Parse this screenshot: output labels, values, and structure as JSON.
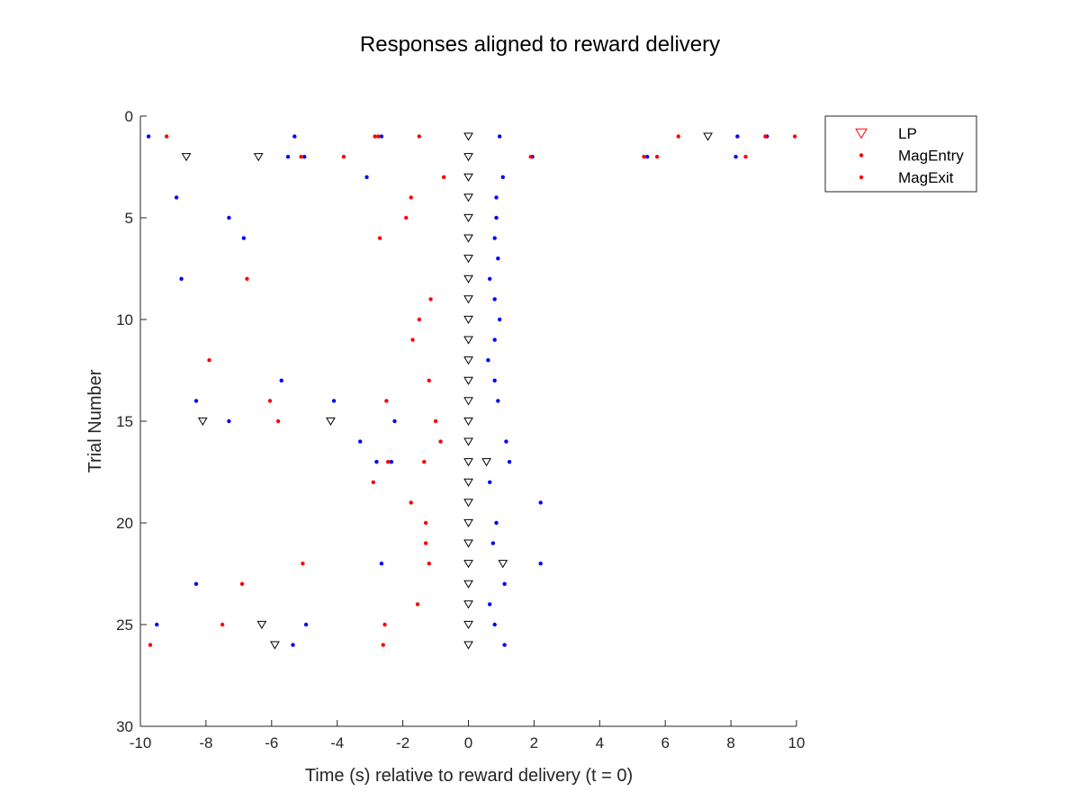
{
  "chart_data": {
    "type": "scatter",
    "title": "Responses aligned to reward delivery",
    "xlabel": "Time (s) relative to reward delivery (t = 0)",
    "ylabel": "Trial Number",
    "xlim": [
      -10,
      10
    ],
    "ylim": [
      0,
      30
    ],
    "y_reversed": true,
    "xticks": [
      -10,
      -8,
      -6,
      -4,
      -2,
      0,
      2,
      4,
      6,
      8,
      10
    ],
    "yticks": [
      0,
      5,
      10,
      15,
      20,
      25,
      30
    ],
    "grid": false,
    "legend_position": "outside top-right",
    "legend": [
      {
        "label": "LP",
        "marker": "triangle-down",
        "color": "#ff0000"
      },
      {
        "label": "MagEntry",
        "marker": "dot",
        "color": "#ff0000"
      },
      {
        "label": "MagExit",
        "marker": "dot",
        "color": "#ff0000"
      }
    ],
    "marker_styles": {
      "lever_press": {
        "shape": "triangle-down",
        "color": "#000000"
      },
      "blue_dots": {
        "shape": "dot",
        "color": "#0000ff"
      },
      "red_dots": {
        "shape": "dot",
        "color": "#ff0000"
      }
    },
    "lever_press_points": [
      [
        0,
        1
      ],
      [
        7.3,
        1
      ],
      [
        -8.6,
        2
      ],
      [
        -6.4,
        2
      ],
      [
        0,
        2
      ],
      [
        0,
        3
      ],
      [
        0,
        4
      ],
      [
        0,
        5
      ],
      [
        0,
        6
      ],
      [
        0,
        7
      ],
      [
        0,
        8
      ],
      [
        0,
        9
      ],
      [
        0,
        10
      ],
      [
        0,
        11
      ],
      [
        0,
        12
      ],
      [
        0,
        13
      ],
      [
        0,
        14
      ],
      [
        -8.1,
        15
      ],
      [
        -4.2,
        15
      ],
      [
        0,
        15
      ],
      [
        0,
        16
      ],
      [
        0,
        17
      ],
      [
        0.55,
        17
      ],
      [
        0,
        18
      ],
      [
        0,
        19
      ],
      [
        0,
        20
      ],
      [
        0,
        21
      ],
      [
        0,
        22
      ],
      [
        1.05,
        22
      ],
      [
        0,
        23
      ],
      [
        0,
        24
      ],
      [
        -6.3,
        25
      ],
      [
        0,
        25
      ],
      [
        -5.9,
        26
      ],
      [
        0,
        26
      ]
    ],
    "blue_dots": [
      [
        -9.75,
        1
      ],
      [
        -5.3,
        1
      ],
      [
        -2.65,
        1
      ],
      [
        0.95,
        1
      ],
      [
        8.2,
        1
      ],
      [
        9.1,
        1
      ],
      [
        -5.5,
        2
      ],
      [
        -5.0,
        2
      ],
      [
        1.95,
        2
      ],
      [
        5.45,
        2
      ],
      [
        8.15,
        2
      ],
      [
        -3.1,
        3
      ],
      [
        1.05,
        3
      ],
      [
        -8.9,
        4
      ],
      [
        0.85,
        4
      ],
      [
        -7.3,
        5
      ],
      [
        0.85,
        5
      ],
      [
        -6.85,
        6
      ],
      [
        0.8,
        6
      ],
      [
        0.9,
        7
      ],
      [
        -8.75,
        8
      ],
      [
        0.65,
        8
      ],
      [
        0.8,
        9
      ],
      [
        0.95,
        10
      ],
      [
        0.8,
        11
      ],
      [
        0.6,
        12
      ],
      [
        -5.7,
        13
      ],
      [
        0.8,
        13
      ],
      [
        -8.3,
        14
      ],
      [
        -4.1,
        14
      ],
      [
        0.9,
        14
      ],
      [
        -7.3,
        15
      ],
      [
        -2.25,
        15
      ],
      [
        -3.3,
        16
      ],
      [
        1.15,
        16
      ],
      [
        -2.8,
        17
      ],
      [
        -2.35,
        17
      ],
      [
        1.25,
        17
      ],
      [
        0.65,
        18
      ],
      [
        2.2,
        19
      ],
      [
        0.85,
        20
      ],
      [
        0.75,
        21
      ],
      [
        -2.65,
        22
      ],
      [
        2.2,
        22
      ],
      [
        -8.3,
        23
      ],
      [
        1.1,
        23
      ],
      [
        0.65,
        24
      ],
      [
        -9.5,
        25
      ],
      [
        -4.95,
        25
      ],
      [
        0.8,
        25
      ],
      [
        -5.35,
        26
      ],
      [
        1.1,
        26
      ]
    ],
    "red_dots": [
      [
        -9.2,
        1
      ],
      [
        -2.85,
        1
      ],
      [
        -2.75,
        1
      ],
      [
        -1.5,
        1
      ],
      [
        6.4,
        1
      ],
      [
        9.05,
        1
      ],
      [
        9.95,
        1
      ],
      [
        -5.1,
        2
      ],
      [
        -3.8,
        2
      ],
      [
        1.9,
        2
      ],
      [
        5.35,
        2
      ],
      [
        5.75,
        2
      ],
      [
        8.45,
        2
      ],
      [
        -0.75,
        3
      ],
      [
        -1.75,
        4
      ],
      [
        -1.9,
        5
      ],
      [
        -2.7,
        6
      ],
      [
        -6.75,
        8
      ],
      [
        -1.15,
        9
      ],
      [
        -1.5,
        10
      ],
      [
        -1.7,
        11
      ],
      [
        -7.9,
        12
      ],
      [
        -1.2,
        13
      ],
      [
        -6.05,
        14
      ],
      [
        -2.5,
        14
      ],
      [
        -5.8,
        15
      ],
      [
        -1.0,
        15
      ],
      [
        -0.85,
        16
      ],
      [
        -2.45,
        17
      ],
      [
        -1.35,
        17
      ],
      [
        -2.9,
        18
      ],
      [
        -1.75,
        19
      ],
      [
        -1.3,
        20
      ],
      [
        -1.3,
        21
      ],
      [
        -5.05,
        22
      ],
      [
        -1.2,
        22
      ],
      [
        -6.9,
        23
      ],
      [
        -1.55,
        24
      ],
      [
        -7.5,
        25
      ],
      [
        -2.55,
        25
      ],
      [
        -9.7,
        26
      ],
      [
        -2.6,
        26
      ]
    ]
  }
}
